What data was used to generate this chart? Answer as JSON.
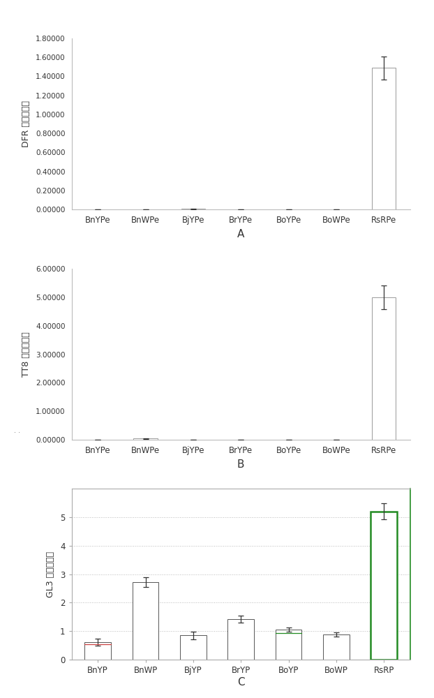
{
  "chart_A": {
    "categories": [
      "BnYPe",
      "BnWPe",
      "BjYPe",
      "BrYPe",
      "BoYPe",
      "BoWPe",
      "RsRPe"
    ],
    "values": [
      0.0,
      0.0,
      0.005,
      0.0,
      0.0,
      0.0,
      1.49
    ],
    "errors": [
      0.0,
      0.0,
      0.003,
      0.0,
      0.0,
      0.0,
      0.12
    ],
    "ylabel": "DFR 基因表达量",
    "label": "A",
    "ylim": [
      0,
      1.8
    ],
    "yticks": [
      0.0,
      0.2,
      0.4,
      0.6,
      0.8,
      1.0,
      1.2,
      1.4,
      1.6,
      1.8
    ],
    "ytick_labels": [
      "0.00000",
      "0.20000",
      "0.40000",
      "0.60000",
      "0.80000",
      "1.00000",
      "1.20000",
      "1.40000",
      "1.60000",
      "1.80000"
    ],
    "bar_color": "white",
    "edge_color": "#999999"
  },
  "chart_B": {
    "categories": [
      "BnYPe",
      "BnWPe",
      "BjYPe",
      "BrYPe",
      "BoYPe",
      "BoWPe",
      "RsRPe"
    ],
    "values": [
      0.0,
      0.04,
      0.0,
      0.0,
      0.0,
      0.0,
      5.0
    ],
    "errors": [
      0.0,
      0.02,
      0.0,
      0.0,
      0.0,
      0.0,
      0.42
    ],
    "ylabel": "TT8 基因表达量",
    "label": "B",
    "ylim": [
      0,
      6.0
    ],
    "yticks": [
      0.0,
      1.0,
      2.0,
      3.0,
      4.0,
      5.0,
      6.0
    ],
    "ytick_labels": [
      "0.00000",
      "1.00000",
      "2.00000",
      "3.00000",
      "4.00000",
      "5.00000",
      "6.00000"
    ],
    "bar_color": "white",
    "edge_color": "#999999"
  },
  "chart_C": {
    "categories": [
      "BnYP",
      "BnWP",
      "BjYP",
      "BrYP",
      "BoYP",
      "BoWP",
      "RsRP"
    ],
    "values": [
      0.62,
      2.72,
      0.85,
      1.42,
      1.05,
      0.88,
      5.2
    ],
    "errors": [
      0.12,
      0.18,
      0.14,
      0.13,
      0.07,
      0.07,
      0.28
    ],
    "ylabel": "GL3 基因表达量",
    "label": "C",
    "ylim": [
      0,
      6.0
    ],
    "yticks": [
      0,
      1,
      2,
      3,
      4,
      5
    ],
    "ytick_labels": [
      "0",
      "1",
      "2",
      "3",
      "4",
      "5"
    ],
    "bar_color": "white",
    "edge_color": "#555555",
    "last_bar_edge_color": "#228B22",
    "grid": true,
    "bar_inner_lines": [
      "#cc4444",
      null,
      null,
      null,
      "#228B22",
      null,
      null
    ]
  },
  "figure_bg": "white",
  "font_color": "#333333",
  "dots_text": ". ."
}
